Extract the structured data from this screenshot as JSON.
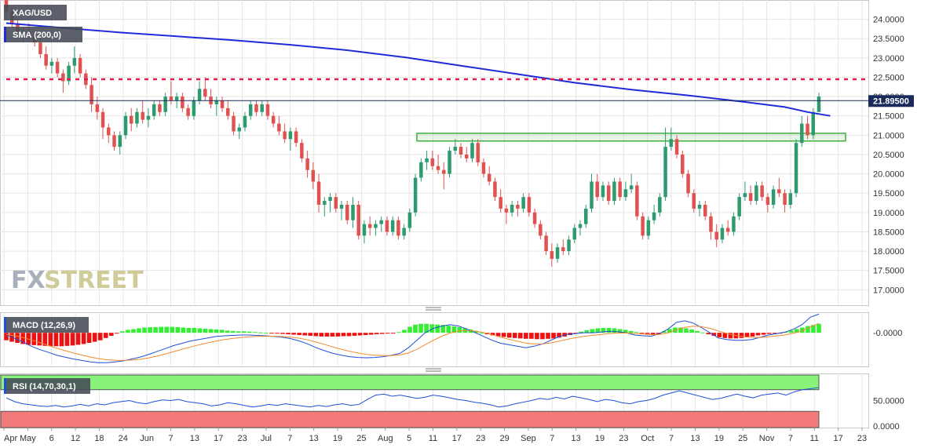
{
  "chart_data": [
    {
      "type": "candlestick",
      "symbol": "XAG/USD",
      "indicator": "SMA (200,0)",
      "last_price": 21.895,
      "last_price_label": "21.89500",
      "ylim": [
        16.6,
        24.5
      ],
      "yticks": [
        "24.0000",
        "23.5000",
        "23.0000",
        "22.5000",
        "22.0000",
        "21.5000",
        "21.0000",
        "20.5000",
        "20.0000",
        "19.5000",
        "19.0000",
        "18.5000",
        "18.0000",
        "17.5000",
        "17.0000"
      ],
      "resistance_level": 22.45,
      "support_zone": [
        20.85,
        21.05
      ],
      "candles": [
        [
          24.6,
          24.7,
          24.1,
          24.2
        ],
        [
          24.2,
          24.3,
          23.8,
          23.9
        ],
        [
          23.9,
          24.0,
          23.5,
          23.6
        ],
        [
          23.6,
          23.8,
          23.4,
          23.7
        ],
        [
          23.7,
          23.9,
          23.5,
          23.6
        ],
        [
          23.6,
          23.7,
          23.3,
          23.4
        ],
        [
          23.4,
          23.5,
          23.0,
          23.1
        ],
        [
          23.1,
          23.3,
          22.7,
          22.8
        ],
        [
          22.8,
          23.0,
          22.6,
          22.9
        ],
        [
          22.9,
          23.0,
          22.5,
          22.6
        ],
        [
          22.6,
          22.7,
          22.1,
          22.4
        ],
        [
          22.4,
          22.9,
          22.3,
          22.8
        ],
        [
          22.8,
          23.3,
          22.6,
          23.0
        ],
        [
          23.0,
          23.1,
          22.5,
          22.6
        ],
        [
          22.6,
          22.7,
          22.2,
          22.3
        ],
        [
          22.3,
          22.5,
          21.6,
          21.8
        ],
        [
          21.8,
          22.0,
          21.4,
          21.6
        ],
        [
          21.6,
          21.7,
          20.9,
          21.2
        ],
        [
          21.2,
          21.3,
          20.8,
          21.0
        ],
        [
          21.0,
          21.1,
          20.6,
          20.7
        ],
        [
          20.7,
          21.1,
          20.5,
          21.0
        ],
        [
          21.0,
          21.6,
          20.9,
          21.5
        ],
        [
          21.5,
          21.7,
          21.1,
          21.3
        ],
        [
          21.3,
          21.7,
          21.2,
          21.6
        ],
        [
          21.6,
          21.9,
          21.3,
          21.4
        ],
        [
          21.4,
          21.7,
          21.2,
          21.5
        ],
        [
          21.5,
          21.9,
          21.4,
          21.8
        ],
        [
          21.8,
          21.9,
          21.5,
          21.6
        ],
        [
          21.6,
          22.1,
          21.5,
          22.0
        ],
        [
          22.0,
          22.4,
          21.8,
          21.9
        ],
        [
          21.9,
          22.1,
          21.7,
          22.0
        ],
        [
          22.0,
          22.1,
          21.6,
          21.7
        ],
        [
          21.7,
          21.8,
          21.4,
          21.5
        ],
        [
          21.5,
          22.0,
          21.4,
          21.9
        ],
        [
          21.9,
          22.4,
          21.8,
          22.2
        ],
        [
          22.2,
          22.5,
          21.9,
          22.0
        ],
        [
          22.0,
          22.2,
          21.7,
          21.8
        ],
        [
          21.8,
          22.0,
          21.5,
          21.9
        ],
        [
          21.9,
          22.0,
          21.6,
          21.7
        ],
        [
          21.7,
          21.9,
          21.4,
          21.5
        ],
        [
          21.5,
          21.6,
          21.0,
          21.1
        ],
        [
          21.1,
          21.3,
          20.9,
          21.2
        ],
        [
          21.2,
          21.6,
          21.1,
          21.5
        ],
        [
          21.5,
          21.9,
          21.4,
          21.8
        ],
        [
          21.8,
          21.9,
          21.5,
          21.6
        ],
        [
          21.6,
          21.9,
          21.5,
          21.8
        ],
        [
          21.8,
          21.9,
          21.4,
          21.5
        ],
        [
          21.5,
          21.6,
          21.2,
          21.3
        ],
        [
          21.3,
          21.5,
          21.0,
          21.1
        ],
        [
          21.1,
          21.3,
          20.8,
          20.9
        ],
        [
          20.9,
          21.2,
          20.6,
          21.1
        ],
        [
          21.1,
          21.2,
          20.7,
          20.8
        ],
        [
          20.8,
          20.9,
          20.3,
          20.4
        ],
        [
          20.4,
          20.6,
          19.9,
          20.1
        ],
        [
          20.1,
          20.3,
          19.6,
          19.8
        ],
        [
          19.8,
          20.0,
          19.0,
          19.2
        ],
        [
          19.2,
          19.4,
          18.9,
          19.3
        ],
        [
          19.3,
          19.5,
          19.0,
          19.4
        ],
        [
          19.4,
          19.5,
          19.0,
          19.1
        ],
        [
          19.1,
          19.3,
          18.8,
          19.2
        ],
        [
          19.2,
          19.3,
          18.7,
          18.8
        ],
        [
          18.8,
          19.4,
          18.6,
          19.2
        ],
        [
          19.2,
          19.3,
          18.3,
          18.4
        ],
        [
          18.4,
          18.8,
          18.2,
          18.7
        ],
        [
          18.7,
          18.9,
          18.4,
          18.6
        ],
        [
          18.6,
          18.8,
          18.4,
          18.7
        ],
        [
          18.7,
          18.9,
          18.5,
          18.8
        ],
        [
          18.8,
          18.9,
          18.4,
          18.5
        ],
        [
          18.5,
          18.9,
          18.4,
          18.8
        ],
        [
          18.8,
          18.9,
          18.3,
          18.4
        ],
        [
          18.4,
          18.7,
          18.3,
          18.6
        ],
        [
          18.6,
          19.1,
          18.5,
          19.0
        ],
        [
          19.0,
          20.0,
          18.9,
          19.9
        ],
        [
          19.9,
          20.4,
          19.8,
          20.3
        ],
        [
          20.3,
          20.6,
          20.1,
          20.4
        ],
        [
          20.4,
          20.6,
          20.1,
          20.2
        ],
        [
          20.2,
          20.5,
          20.0,
          20.1
        ],
        [
          20.1,
          20.3,
          19.6,
          20.0
        ],
        [
          20.0,
          20.7,
          19.9,
          20.6
        ],
        [
          20.6,
          20.9,
          20.5,
          20.7
        ],
        [
          20.7,
          20.8,
          20.4,
          20.5
        ],
        [
          20.5,
          20.7,
          20.3,
          20.4
        ],
        [
          20.4,
          20.9,
          20.3,
          20.8
        ],
        [
          20.8,
          20.9,
          20.2,
          20.3
        ],
        [
          20.3,
          20.4,
          19.9,
          20.0
        ],
        [
          20.0,
          20.2,
          19.7,
          19.8
        ],
        [
          19.8,
          19.9,
          19.3,
          19.4
        ],
        [
          19.4,
          19.6,
          19.0,
          19.1
        ],
        [
          19.1,
          19.2,
          18.7,
          19.0
        ],
        [
          19.0,
          19.3,
          18.9,
          19.2
        ],
        [
          19.2,
          19.3,
          18.9,
          19.1
        ],
        [
          19.1,
          19.5,
          19.0,
          19.4
        ],
        [
          19.4,
          19.5,
          18.9,
          19.0
        ],
        [
          19.0,
          19.1,
          18.6,
          18.7
        ],
        [
          18.7,
          18.8,
          18.3,
          18.4
        ],
        [
          18.4,
          18.5,
          17.9,
          18.0
        ],
        [
          18.0,
          18.2,
          17.6,
          17.8
        ],
        [
          17.8,
          18.2,
          17.7,
          18.1
        ],
        [
          18.1,
          18.3,
          17.9,
          18.0
        ],
        [
          18.0,
          18.4,
          17.9,
          18.3
        ],
        [
          18.3,
          18.7,
          18.2,
          18.6
        ],
        [
          18.6,
          18.8,
          18.4,
          18.7
        ],
        [
          18.7,
          19.2,
          18.6,
          19.1
        ],
        [
          19.1,
          20.0,
          19.0,
          19.8
        ],
        [
          19.8,
          20.0,
          19.3,
          19.4
        ],
        [
          19.4,
          19.8,
          19.3,
          19.7
        ],
        [
          19.7,
          19.8,
          19.2,
          19.3
        ],
        [
          19.3,
          19.9,
          19.2,
          19.8
        ],
        [
          19.8,
          19.9,
          19.3,
          19.4
        ],
        [
          19.4,
          19.8,
          19.3,
          19.6
        ],
        [
          19.6,
          20.0,
          19.5,
          19.7
        ],
        [
          19.7,
          19.8,
          18.8,
          18.9
        ],
        [
          18.9,
          19.0,
          18.3,
          18.4
        ],
        [
          18.4,
          18.9,
          18.3,
          18.8
        ],
        [
          18.8,
          19.2,
          18.7,
          19.0
        ],
        [
          19.0,
          19.5,
          18.9,
          19.4
        ],
        [
          19.4,
          21.2,
          19.3,
          20.7
        ],
        [
          20.7,
          21.2,
          20.6,
          20.9
        ],
        [
          20.9,
          21.0,
          20.4,
          20.5
        ],
        [
          20.5,
          20.6,
          19.9,
          20.0
        ],
        [
          20.0,
          20.1,
          19.4,
          19.5
        ],
        [
          19.5,
          19.6,
          19.0,
          19.1
        ],
        [
          19.1,
          19.3,
          18.9,
          19.2
        ],
        [
          19.2,
          19.3,
          18.8,
          18.9
        ],
        [
          18.9,
          19.0,
          18.3,
          18.5
        ],
        [
          18.5,
          18.7,
          18.1,
          18.3
        ],
        [
          18.3,
          18.7,
          18.2,
          18.6
        ],
        [
          18.6,
          18.8,
          18.4,
          18.5
        ],
        [
          18.5,
          19.0,
          18.4,
          18.9
        ],
        [
          18.9,
          19.5,
          18.8,
          19.4
        ],
        [
          19.4,
          19.8,
          19.3,
          19.5
        ],
        [
          19.5,
          19.7,
          19.2,
          19.3
        ],
        [
          19.3,
          19.8,
          19.2,
          19.7
        ],
        [
          19.7,
          19.8,
          19.3,
          19.4
        ],
        [
          19.4,
          19.5,
          19.0,
          19.2
        ],
        [
          19.2,
          19.7,
          19.1,
          19.6
        ],
        [
          19.6,
          19.9,
          19.4,
          19.5
        ],
        [
          19.5,
          19.6,
          19.0,
          19.2
        ],
        [
          19.2,
          19.6,
          19.1,
          19.5
        ],
        [
          19.5,
          20.9,
          19.4,
          20.8
        ],
        [
          20.8,
          21.5,
          20.7,
          21.3
        ],
        [
          21.3,
          21.5,
          20.9,
          21.0
        ],
        [
          21.0,
          21.7,
          20.9,
          21.6
        ],
        [
          21.6,
          22.1,
          21.6,
          22.0
        ]
      ],
      "sma200": [
        [
          0,
          23.9
        ],
        [
          10,
          23.78
        ],
        [
          20,
          23.66
        ],
        [
          30,
          23.56
        ],
        [
          40,
          23.46
        ],
        [
          50,
          23.34
        ],
        [
          60,
          23.2
        ],
        [
          70,
          23.02
        ],
        [
          80,
          22.8
        ],
        [
          90,
          22.58
        ],
        [
          100,
          22.36
        ],
        [
          110,
          22.18
        ],
        [
          120,
          22.03
        ],
        [
          130,
          21.86
        ],
        [
          137,
          21.73
        ],
        [
          141,
          21.6
        ],
        [
          145,
          21.5
        ]
      ]
    },
    {
      "type": "histogram+line",
      "indicator": "MACD (12,26,9)",
      "ytick": "-0.0000",
      "ylim": [
        -0.9,
        0.55
      ],
      "hist": [
        -0.2,
        -0.24,
        -0.27,
        -0.3,
        -0.32,
        -0.33,
        -0.34,
        -0.35,
        -0.36,
        -0.36,
        -0.36,
        -0.35,
        -0.34,
        -0.32,
        -0.3,
        -0.27,
        -0.24,
        -0.2,
        -0.14,
        -0.08,
        -0.02,
        0.04,
        0.08,
        0.1,
        0.12,
        0.14,
        0.15,
        0.15,
        0.16,
        0.16,
        0.16,
        0.15,
        0.14,
        0.13,
        0.13,
        0.12,
        0.11,
        0.1,
        0.09,
        0.08,
        0.06,
        0.05,
        0.04,
        0.04,
        0.03,
        0.02,
        0.01,
        0.0,
        -0.01,
        -0.02,
        -0.03,
        -0.04,
        -0.05,
        -0.06,
        -0.07,
        -0.08,
        -0.09,
        -0.1,
        -0.1,
        -0.1,
        -0.1,
        -0.09,
        -0.09,
        -0.08,
        -0.07,
        -0.06,
        -0.05,
        -0.04,
        -0.03,
        -0.02,
        -0.01,
        0.02,
        0.08,
        0.16,
        0.22,
        0.24,
        0.24,
        0.23,
        0.22,
        0.21,
        0.19,
        0.17,
        0.15,
        0.12,
        0.09,
        0.05,
        0.0,
        -0.04,
        -0.07,
        -0.09,
        -0.11,
        -0.13,
        -0.14,
        -0.15,
        -0.16,
        -0.16,
        -0.17,
        -0.17,
        -0.16,
        -0.15,
        -0.13,
        -0.1,
        -0.06,
        -0.02,
        0.03,
        0.07,
        0.1,
        0.12,
        0.13,
        0.13,
        0.12,
        0.1,
        0.08,
        0.05,
        0.02,
        -0.01,
        -0.03,
        -0.04,
        -0.05,
        0.04,
        0.1,
        0.14,
        0.14,
        0.12,
        0.09,
        0.05,
        0.01,
        -0.04,
        -0.08,
        -0.12,
        -0.14,
        -0.15,
        -0.15,
        -0.14,
        -0.12,
        -0.1,
        -0.07,
        -0.05,
        -0.03,
        -0.02,
        -0.01,
        0.02,
        0.06,
        0.1,
        0.14,
        0.18,
        0.21,
        0.24
      ],
      "macd": [
        -0.05,
        -0.15,
        -0.25,
        -0.36,
        -0.45,
        -0.52,
        -0.6,
        -0.65,
        -0.7,
        -0.74,
        -0.78,
        -0.8,
        -0.8,
        -0.78,
        -0.75,
        -0.7,
        -0.65,
        -0.58,
        -0.5,
        -0.42,
        -0.34,
        -0.28,
        -0.22,
        -0.18,
        -0.14,
        -0.1,
        -0.08,
        -0.07,
        -0.06,
        -0.06,
        -0.07,
        -0.08,
        -0.1,
        -0.12,
        -0.16,
        -0.22,
        -0.3,
        -0.4,
        -0.48,
        -0.55,
        -0.6,
        -0.64,
        -0.66,
        -0.67,
        -0.66,
        -0.64,
        -0.6,
        -0.55,
        -0.4,
        -0.2,
        0.0,
        0.12,
        0.18,
        0.22,
        0.18,
        0.1,
        0.0,
        -0.1,
        -0.2,
        -0.28,
        -0.32,
        -0.36,
        -0.4,
        -0.36,
        -0.3,
        -0.2,
        -0.1,
        -0.04,
        -0.02,
        0.0,
        0.0,
        0.02,
        0.04,
        0.03,
        0.0,
        -0.06,
        -0.08,
        -0.09,
        -0.02,
        0.1,
        0.28,
        0.32,
        0.26,
        0.14,
        0.0,
        -0.14,
        -0.18,
        -0.2,
        -0.2,
        -0.18,
        -0.12,
        -0.06,
        -0.02,
        0.02,
        0.1,
        0.22,
        0.42,
        0.5
      ]
    },
    {
      "type": "line",
      "indicator": "RSI (14,70,30,1)",
      "yticks": [
        "50.0000",
        "0.0000"
      ],
      "ylim": [
        0,
        100
      ],
      "overbought": 70,
      "oversold": 30,
      "rsi": [
        55,
        48,
        44,
        42,
        40,
        39,
        41,
        38,
        40,
        43,
        40,
        44,
        42,
        46,
        48,
        50,
        46,
        44,
        48,
        51,
        50,
        52,
        48,
        46,
        44,
        40,
        42,
        46,
        44,
        41,
        38,
        40,
        43,
        41,
        44,
        42,
        40,
        38,
        41,
        39,
        42,
        44,
        41,
        43,
        52,
        60,
        62,
        58,
        60,
        57,
        54,
        56,
        60,
        58,
        55,
        52,
        50,
        47,
        45,
        42,
        38,
        40,
        44,
        47,
        50,
        54,
        52,
        56,
        53,
        58,
        55,
        52,
        48,
        52,
        50,
        46,
        44,
        48,
        50,
        54,
        60,
        64,
        68,
        64,
        60,
        56,
        52,
        54,
        58,
        62,
        58,
        55,
        60,
        62,
        64,
        60,
        66,
        70,
        72,
        74
      ]
    }
  ],
  "x_axis": {
    "labels": [
      "Apr",
      "May",
      "6",
      "12",
      "18",
      "24",
      "Jun",
      "7",
      "13",
      "17",
      "23",
      "Jul",
      "7",
      "13",
      "19",
      "25",
      "Aug",
      "5",
      "11",
      "17",
      "23",
      "29",
      "Sep",
      "7",
      "13",
      "19",
      "23",
      "Oct",
      "7",
      "13",
      "19",
      "25",
      "Nov",
      "7",
      "11",
      "17",
      "23"
    ]
  },
  "watermark": {
    "part1": "FX",
    "part2": "STREET"
  },
  "colors": {
    "bull": "#2e9b6e",
    "bear": "#e0524f",
    "sma": "#1f2bd6",
    "resistance": "#e8194b",
    "zone": "#3fae3f",
    "last_price_tag": "#1a2a5a",
    "macd_line": "#1f4fd6",
    "signal_line": "#f28a2e",
    "hist_pos": "#33ee33",
    "hist_neg": "#ee1111",
    "rsi_line": "#1f4fd6",
    "ob_fill": "#88f27a",
    "os_fill": "#f27a7a",
    "grid": "#e6e6e6"
  }
}
